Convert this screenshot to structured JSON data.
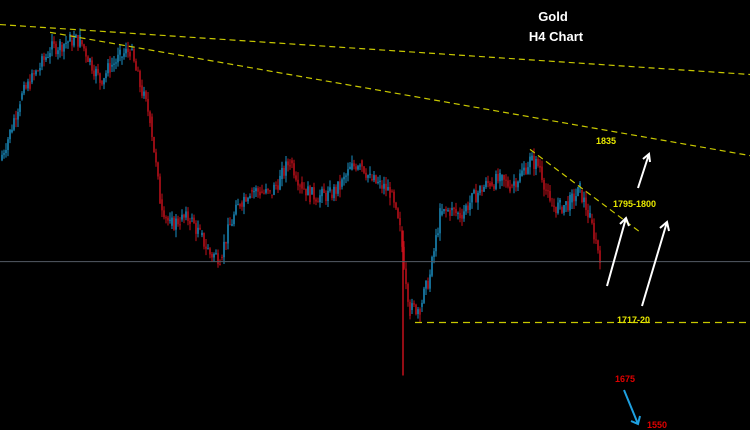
{
  "chart_data": {
    "type": "candlestick",
    "title": "Gold",
    "subtitle": "H4 Chart",
    "x_unit": "bar index",
    "price_range": [
      1545,
      1915
    ],
    "grid": false,
    "colors": {
      "up": "#1a8fc4",
      "down": "#c4101a",
      "trendline": "#c8c800",
      "current_price_line": "#555c66",
      "arrow_up": "#ffffff",
      "arrow_down": "#1ea0e0",
      "label_levels": "#e8e800",
      "label_bearish": "#e00000"
    },
    "closes": [
      1822,
      1840,
      1861,
      1872,
      1882,
      1893,
      1896,
      1899,
      1899,
      1886,
      1873,
      1882,
      1888,
      1893,
      1870,
      1850,
      1797,
      1780,
      1784,
      1785,
      1774,
      1762,
      1760,
      1780,
      1795,
      1803,
      1802,
      1800,
      1810,
      1822,
      1808,
      1800,
      1799,
      1800,
      1805,
      1816,
      1822,
      1810,
      1806,
      1802,
      1777,
      1726,
      1728,
      1748,
      1787,
      1790,
      1787,
      1795,
      1803,
      1808,
      1809,
      1806,
      1812,
      1822,
      1818,
      1793,
      1792,
      1795,
      1803,
      1784,
      1761
    ],
    "spike_low": {
      "index": 40,
      "price": 1684
    },
    "current_price": 1757,
    "trendlines": [
      {
        "from": [
          0,
          1909
        ],
        "to": [
          75,
          1877
        ]
      },
      {
        "from": [
          5,
          1904
        ],
        "to": [
          75,
          1825
        ]
      },
      {
        "from": [
          53,
          1829
        ],
        "to": [
          64,
          1776
        ]
      }
    ],
    "support_line": {
      "from_index": 41.5,
      "price": 1718
    },
    "annotations": [
      {
        "text": "1835",
        "type": "target"
      },
      {
        "text": "1795-1800",
        "type": "resistance"
      },
      {
        "text": "1717-20",
        "type": "support"
      },
      {
        "text": "1675",
        "type": "bearish"
      },
      {
        "text": "1550",
        "type": "bearish"
      }
    ]
  }
}
